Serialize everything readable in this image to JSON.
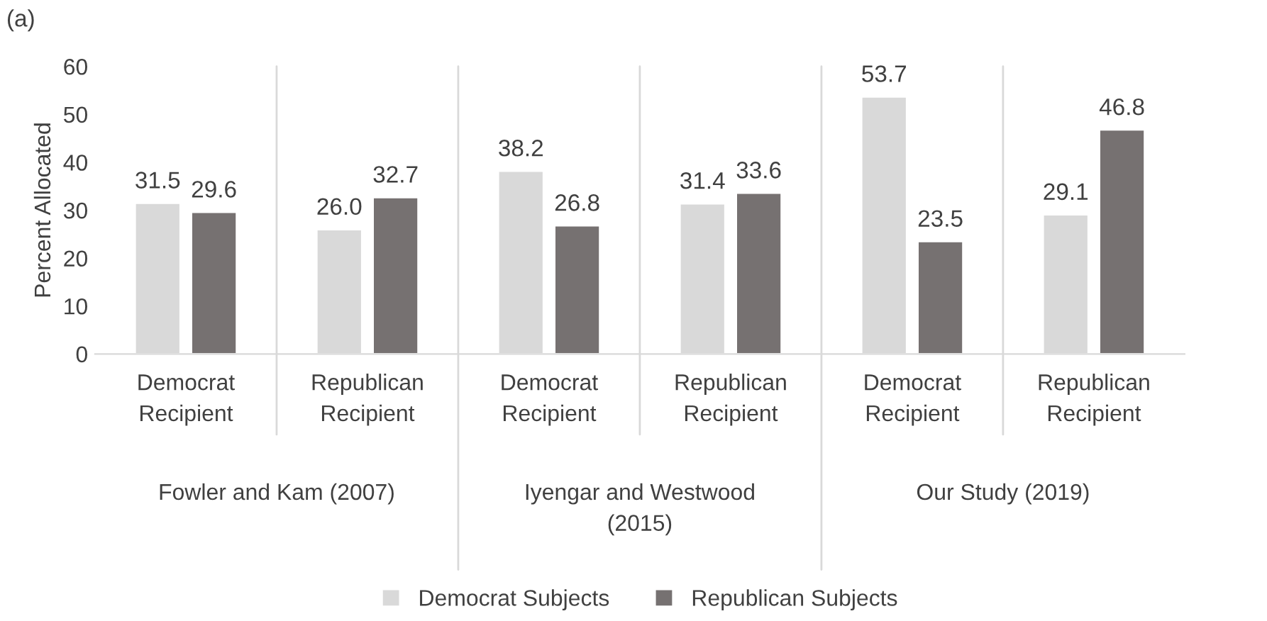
{
  "chart_data": {
    "type": "bar",
    "title": "(a)",
    "ylabel": "Percent Allocated",
    "categories": [
      "Democrat\nRecipient",
      "Republican\nRecipient",
      "Democrat\nRecipient",
      "Republican\nRecipient",
      "Democrat\nRecipient",
      "Republican\nRecipient"
    ],
    "series": [
      {
        "name": "Democrat Subjects",
        "color": "#d9d9d9",
        "values": [
          31.5,
          26.0,
          38.2,
          31.4,
          53.7,
          29.1
        ],
        "value_labels": [
          "31.5",
          "26.0",
          "38.2",
          "31.4",
          "53.7",
          "29.1"
        ]
      },
      {
        "name": "Republican Subjects",
        "color": "#767171",
        "values": [
          29.6,
          32.7,
          26.8,
          33.6,
          23.5,
          46.8
        ],
        "value_labels": [
          "29.6",
          "32.7",
          "26.8",
          "33.6",
          "23.5",
          "46.8"
        ]
      }
    ],
    "annotations": [
      "Fowler and Kam (2007)",
      "Iyengar and Westwood\n(2015)",
      "Our Study (2019)"
    ],
    "ylim": [
      0,
      60
    ],
    "yticks": [
      0,
      10,
      20,
      30,
      40,
      50,
      60
    ],
    "grid": false,
    "legend": "bottom"
  }
}
